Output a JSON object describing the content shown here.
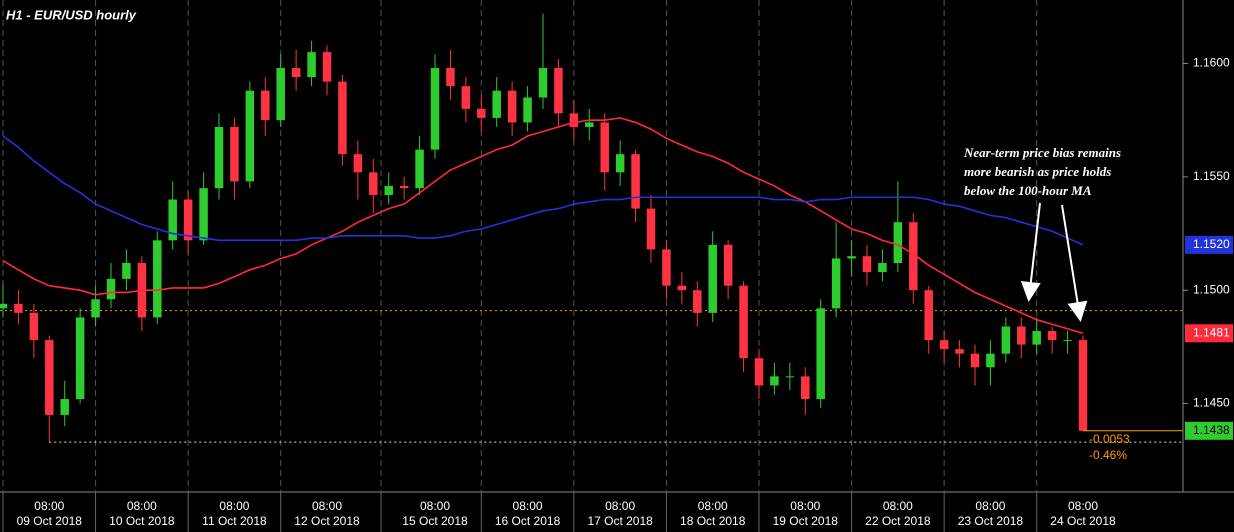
{
  "chart_data": {
    "type": "candlestick",
    "title": "H1 - EUR/USD hourly",
    "annotation": [
      "Near-term price bias remains",
      "more bearish as price holds",
      "below the 100-hour MA"
    ],
    "ylim": [
      1.1411,
      1.1628
    ],
    "yticks": [
      {
        "value": 1.145,
        "label": "1.1450"
      },
      {
        "value": 1.15,
        "label": "1.1500"
      },
      {
        "value": 1.155,
        "label": "1.1550"
      },
      {
        "value": 1.16,
        "label": "1.1600"
      }
    ],
    "categories": [
      null,
      null,
      null,
      {
        "time": "08:00",
        "date": "09 Oct 2018"
      },
      null,
      null,
      null,
      null,
      null,
      {
        "time": "08:00",
        "date": "10 Oct 2018"
      },
      null,
      null,
      null,
      null,
      null,
      {
        "time": "08:00",
        "date": "11 Oct 2018"
      },
      null,
      null,
      null,
      null,
      null,
      {
        "time": "08:00",
        "date": "12 Oct 2018"
      },
      null,
      null,
      null,
      null,
      null,
      null,
      {
        "time": "08:00",
        "date": "15 Oct 2018"
      },
      null,
      null,
      null,
      null,
      null,
      {
        "time": "08:00",
        "date": "16 Oct 2018"
      },
      null,
      null,
      null,
      null,
      null,
      {
        "time": "08:00",
        "date": "17 Oct 2018"
      },
      null,
      null,
      null,
      null,
      null,
      {
        "time": "08:00",
        "date": "18 Oct 2018"
      },
      null,
      null,
      null,
      null,
      null,
      {
        "time": "08:00",
        "date": "19 Oct 2018"
      },
      null,
      null,
      null,
      null,
      null,
      {
        "time": "08:00",
        "date": "22 Oct 2018"
      },
      null,
      null,
      null,
      null,
      null,
      {
        "time": "08:00",
        "date": "23 Oct 2018"
      },
      null,
      null,
      null,
      null,
      null,
      {
        "time": "08:00",
        "date": "24 Oct 2018"
      }
    ],
    "candles": {
      "up_color": "#2ecc2e",
      "down_color": "#ff3344",
      "last_color": "#2ecc2e",
      "last_label": "1.1438",
      "open": [
        1.1492,
        1.1494,
        1.149,
        1.1478,
        1.1445,
        1.1452,
        1.1488,
        1.1496,
        1.1505,
        1.1512,
        1.1488,
        1.1522,
        1.154,
        1.1522,
        1.1545,
        1.1572,
        1.1548,
        1.1588,
        1.1575,
        1.1598,
        1.1594,
        1.1605,
        1.1592,
        1.156,
        1.1552,
        1.1542,
        1.1546,
        1.1545,
        1.1562,
        1.1598,
        1.159,
        1.158,
        1.1576,
        1.1588,
        1.1574,
        1.1585,
        1.1598,
        1.1578,
        1.1572,
        1.1574,
        1.1552,
        1.156,
        1.1536,
        1.1518,
        1.1502,
        1.15,
        1.149,
        1.152,
        1.1502,
        1.147,
        1.1458,
        1.1462,
        1.1462,
        1.1452,
        1.1492,
        1.1514,
        1.1515,
        1.1508,
        1.1512,
        1.153,
        1.15,
        1.1478,
        1.1474,
        1.1472,
        1.1466,
        1.1472,
        1.1484,
        1.1476,
        1.1482,
        1.1478,
        1.1478
      ],
      "high": [
        1.1503,
        1.15,
        1.1494,
        1.148,
        1.146,
        1.1492,
        1.1502,
        1.1512,
        1.1518,
        1.1515,
        1.1526,
        1.1548,
        1.1544,
        1.1552,
        1.1578,
        1.1576,
        1.1592,
        1.1594,
        1.1604,
        1.1606,
        1.161,
        1.1608,
        1.1595,
        1.1566,
        1.1558,
        1.1552,
        1.155,
        1.1568,
        1.1604,
        1.1606,
        1.1594,
        1.1586,
        1.1594,
        1.1592,
        1.159,
        1.1622,
        1.1602,
        1.1584,
        1.158,
        1.1578,
        1.1566,
        1.1562,
        1.1542,
        1.1522,
        1.1508,
        1.1504,
        1.1526,
        1.1522,
        1.1504,
        1.1474,
        1.1468,
        1.1468,
        1.1466,
        1.1496,
        1.153,
        1.1522,
        1.152,
        1.1518,
        1.1548,
        1.1534,
        1.1502,
        1.1482,
        1.1478,
        1.1476,
        1.1478,
        1.1488,
        1.1488,
        1.1488,
        1.1484,
        1.1482,
        1.148
      ],
      "low": [
        1.1488,
        1.1485,
        1.147,
        1.1433,
        1.144,
        1.145,
        1.1484,
        1.1492,
        1.15,
        1.1482,
        1.1485,
        1.1518,
        1.1516,
        1.152,
        1.154,
        1.154,
        1.1545,
        1.1568,
        1.1572,
        1.1588,
        1.159,
        1.1586,
        1.1555,
        1.154,
        1.1534,
        1.1538,
        1.154,
        1.1542,
        1.1558,
        1.1584,
        1.1574,
        1.157,
        1.1572,
        1.1568,
        1.157,
        1.158,
        1.1572,
        1.1566,
        1.1566,
        1.1544,
        1.1546,
        1.153,
        1.1512,
        1.1496,
        1.1494,
        1.1484,
        1.1486,
        1.1496,
        1.1464,
        1.1452,
        1.1454,
        1.1456,
        1.1445,
        1.1448,
        1.1488,
        1.1506,
        1.1502,
        1.1504,
        1.1508,
        1.1494,
        1.1472,
        1.1468,
        1.1466,
        1.1458,
        1.1458,
        1.1468,
        1.147,
        1.1472,
        1.1472,
        1.1472,
        1.1438
      ],
      "close": [
        1.1494,
        1.149,
        1.1478,
        1.1445,
        1.1452,
        1.1488,
        1.1496,
        1.1505,
        1.1512,
        1.1488,
        1.1522,
        1.154,
        1.1522,
        1.1545,
        1.1572,
        1.1548,
        1.1588,
        1.1575,
        1.1598,
        1.1594,
        1.1605,
        1.1592,
        1.156,
        1.1552,
        1.1542,
        1.1546,
        1.1545,
        1.1562,
        1.1598,
        1.159,
        1.158,
        1.1576,
        1.1588,
        1.1574,
        1.1585,
        1.1598,
        1.1578,
        1.1572,
        1.1574,
        1.1552,
        1.156,
        1.1536,
        1.1518,
        1.1502,
        1.15,
        1.149,
        1.152,
        1.1502,
        1.147,
        1.1458,
        1.1462,
        1.1462,
        1.1452,
        1.1492,
        1.1514,
        1.1515,
        1.1508,
        1.1512,
        1.153,
        1.15,
        1.1478,
        1.1474,
        1.1472,
        1.1466,
        1.1472,
        1.1484,
        1.1476,
        1.1482,
        1.1478,
        1.1478,
        1.1438
      ]
    },
    "series": [
      {
        "color": "#ff2a3a",
        "last_label": "1.1481",
        "values": [
          1.1513,
          1.1509,
          1.1505,
          1.1502,
          1.1501,
          1.15,
          1.1498,
          1.1499,
          1.1499,
          1.15,
          1.15,
          1.1501,
          1.1501,
          1.1501,
          1.1503,
          1.1506,
          1.1509,
          1.1511,
          1.1514,
          1.1516,
          1.152,
          1.1523,
          1.1526,
          1.153,
          1.1533,
          1.1536,
          1.1538,
          1.1543,
          1.1548,
          1.1553,
          1.1556,
          1.1559,
          1.1562,
          1.1564,
          1.1568,
          1.157,
          1.1572,
          1.1574,
          1.1575,
          1.1575,
          1.1576,
          1.1574,
          1.1571,
          1.1567,
          1.1564,
          1.1561,
          1.1559,
          1.1556,
          1.1552,
          1.1549,
          1.1546,
          1.1542,
          1.1539,
          1.1535,
          1.1531,
          1.1527,
          1.1525,
          1.1522,
          1.152,
          1.1516,
          1.1511,
          1.1507,
          1.1503,
          1.1499,
          1.1496,
          1.1493,
          1.149,
          1.1487,
          1.1485,
          1.1483,
          1.1481
        ]
      },
      {
        "color": "#2233dd",
        "last_label": "1.1520",
        "values": [
          1.1568,
          1.1563,
          1.1557,
          1.1552,
          1.1547,
          1.1543,
          1.1538,
          1.1535,
          1.1532,
          1.1529,
          1.1527,
          1.1525,
          1.1524,
          1.1523,
          1.1522,
          1.1522,
          1.1522,
          1.1522,
          1.1522,
          1.1522,
          1.1523,
          1.1523,
          1.1524,
          1.1524,
          1.1524,
          1.1524,
          1.1524,
          1.1523,
          1.1523,
          1.1524,
          1.1526,
          1.1527,
          1.1529,
          1.1531,
          1.1533,
          1.1535,
          1.1536,
          1.1538,
          1.1539,
          1.154,
          1.154,
          1.1541,
          1.1541,
          1.1541,
          1.1541,
          1.1541,
          1.1541,
          1.1541,
          1.1541,
          1.1541,
          1.154,
          1.154,
          1.1539,
          1.154,
          1.154,
          1.1541,
          1.1541,
          1.1541,
          1.1541,
          1.1541,
          1.154,
          1.1538,
          1.1537,
          1.1535,
          1.1533,
          1.1532,
          1.153,
          1.1528,
          1.1526,
          1.1523,
          1.152
        ]
      }
    ],
    "levels": [
      {
        "value": 1.1491,
        "color": "#ff9900"
      },
      {
        "value": 1.1433,
        "color": "#dddddd"
      }
    ],
    "change": {
      "points": -0.0053,
      "percent": {
        "value": -0.46,
        "label": "-0.46%"
      },
      "color": "#ff9900"
    }
  }
}
